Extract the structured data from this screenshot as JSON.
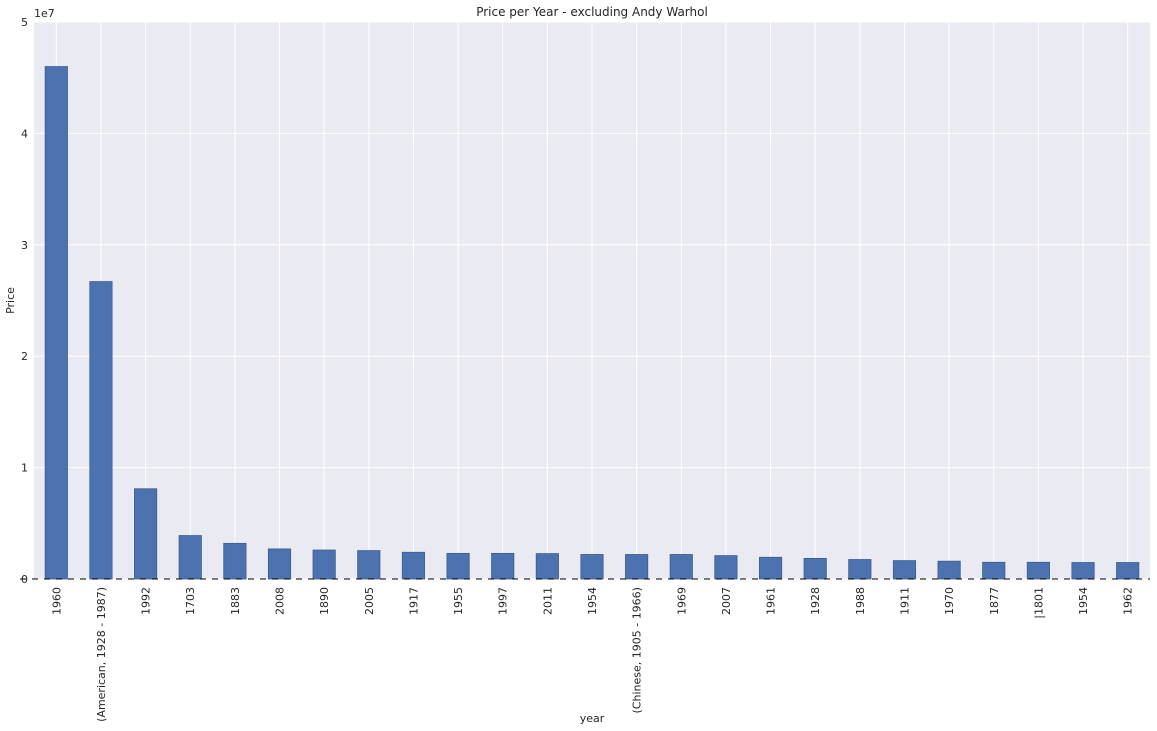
{
  "chart_data": {
    "type": "bar",
    "title": "Price per Year - excluding Andy Warhol",
    "xlabel": "year",
    "ylabel": "Price",
    "y_offset_label": "1e7",
    "ylim": [
      0,
      50000000
    ],
    "y_ticks": [
      0,
      10000000,
      20000000,
      30000000,
      40000000,
      50000000
    ],
    "y_tick_labels": [
      "0",
      "1",
      "2",
      "3",
      "4",
      "5"
    ],
    "categories": [
      "1960",
      "(American, 1928 - 1987)",
      "1992",
      "1703",
      "1883",
      "2008",
      "1890",
      "2005",
      "1917",
      "1955",
      "1997",
      "2011",
      "1954",
      "(Chinese, 1905 - 1966)",
      "1969",
      "2007",
      "1961",
      "1928",
      "1988",
      "1911",
      "1970",
      "1877",
      "|1801",
      "1954",
      "1962"
    ],
    "values": [
      46000000,
      26700000,
      8100000,
      3900000,
      3200000,
      2700000,
      2600000,
      2550000,
      2400000,
      2300000,
      2300000,
      2280000,
      2200000,
      2200000,
      2200000,
      2100000,
      1950000,
      1850000,
      1750000,
      1650000,
      1600000,
      1500000,
      1500000,
      1480000,
      1480000
    ],
    "grid": true,
    "bar_color": "#4c72b0",
    "background_color": "#eaeaf2",
    "grid_color": "#ffffff"
  }
}
